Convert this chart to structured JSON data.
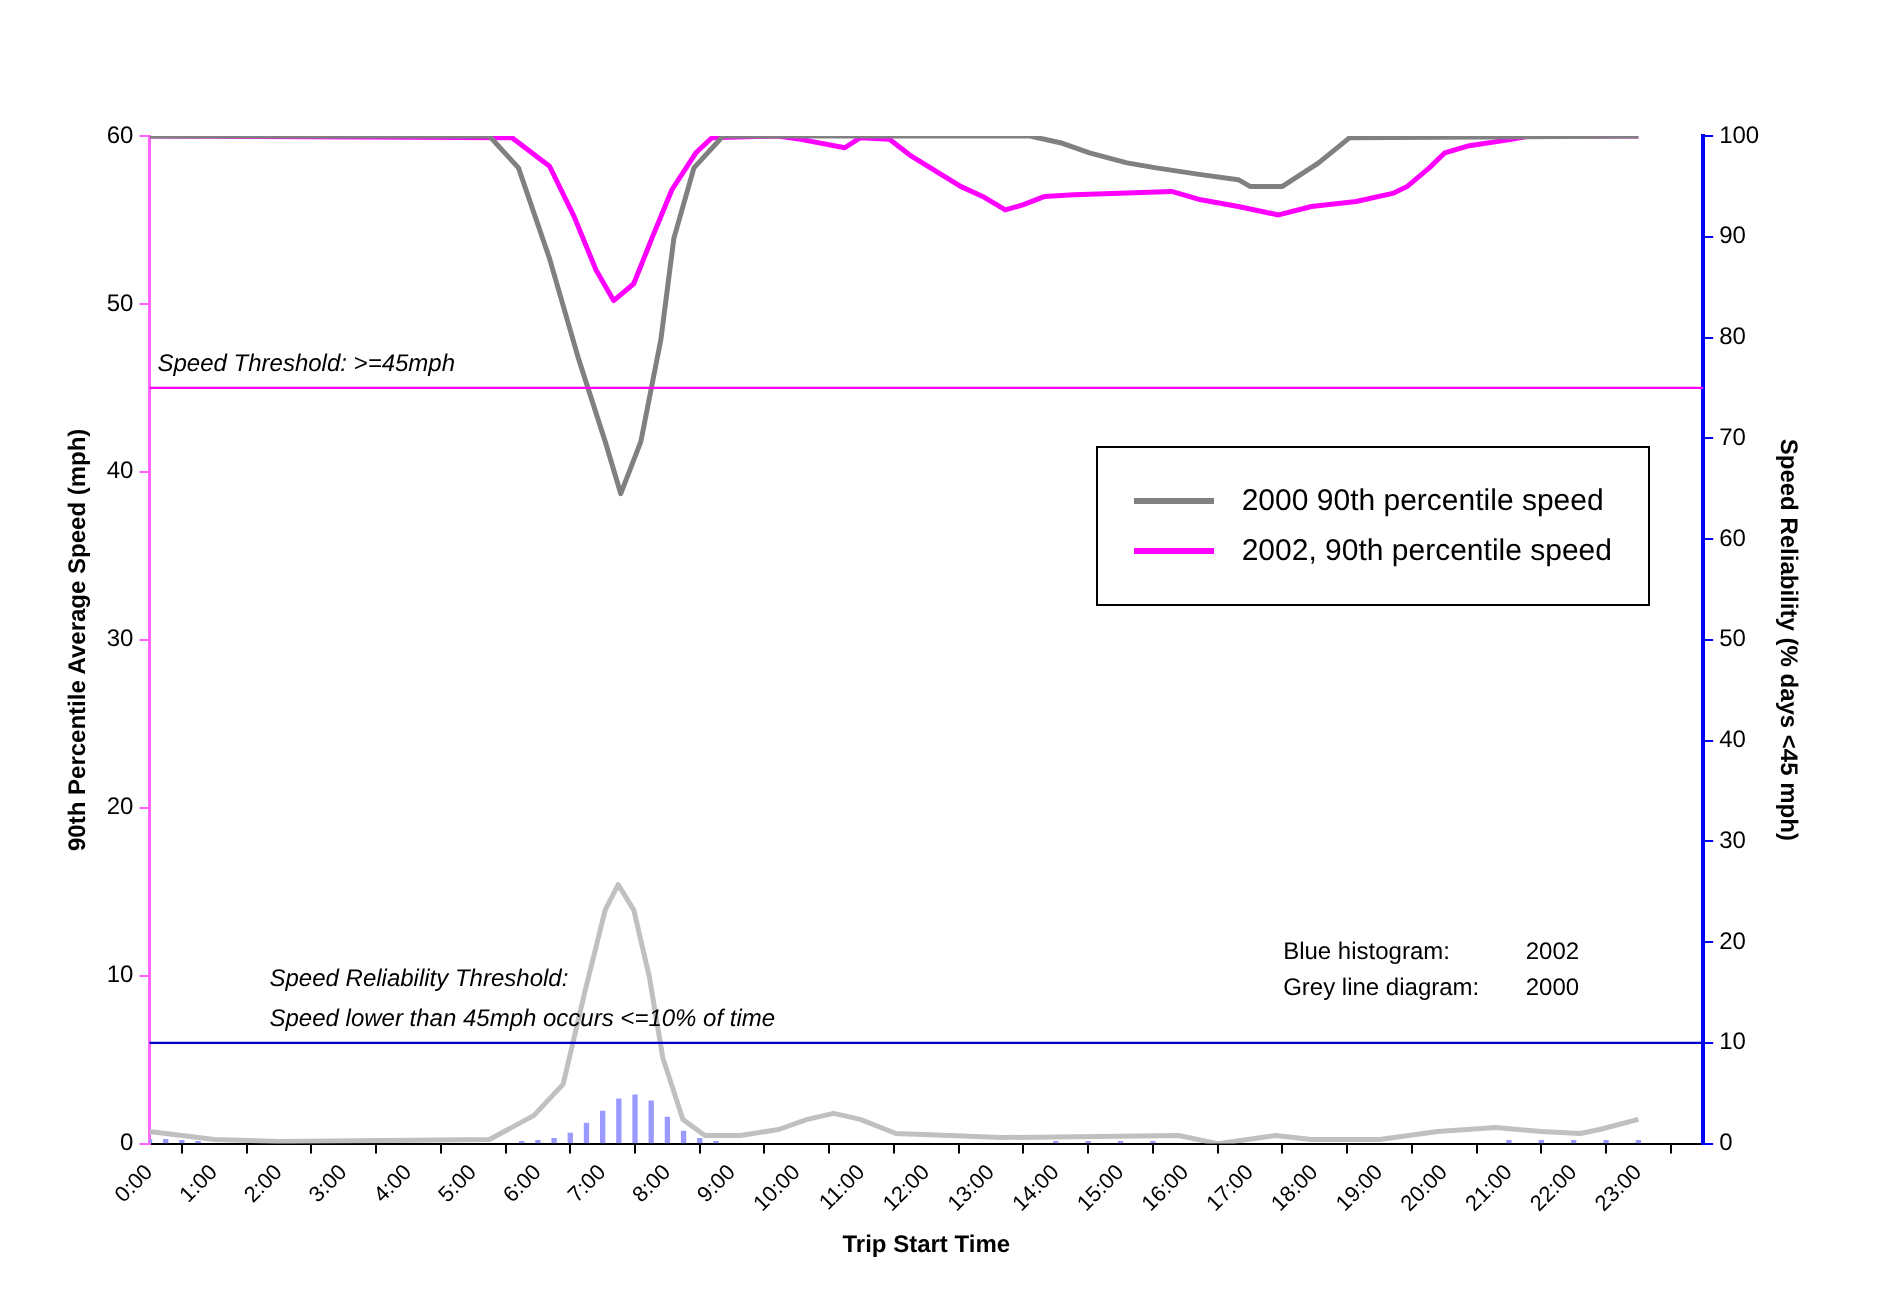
{
  "chart_data": {
    "type": "line",
    "xlabel": "Trip Start Time",
    "ylabel": "90th Percentile Average Speed (mph)",
    "y2label": "Speed Reliability (% days <45 mph)",
    "xlim": [
      0,
      24
    ],
    "xticks": [
      {
        "value": 0,
        "label": "0:00"
      },
      {
        "value": 1,
        "label": "1:00"
      },
      {
        "value": 2,
        "label": "2:00"
      },
      {
        "value": 3,
        "label": "3:00"
      },
      {
        "value": 4,
        "label": "4:00"
      },
      {
        "value": 5,
        "label": "5:00"
      },
      {
        "value": 6,
        "label": "6:00"
      },
      {
        "value": 7,
        "label": "7:00"
      },
      {
        "value": 8,
        "label": "8:00"
      },
      {
        "value": 9,
        "label": "9:00"
      },
      {
        "value": 10,
        "label": "10:00"
      },
      {
        "value": 11,
        "label": "11:00"
      },
      {
        "value": 12,
        "label": "12:00"
      },
      {
        "value": 13,
        "label": "13:00"
      },
      {
        "value": 14,
        "label": "14:00"
      },
      {
        "value": 15,
        "label": "15:00"
      },
      {
        "value": 16,
        "label": "16:00"
      },
      {
        "value": 17,
        "label": "17:00"
      },
      {
        "value": 18,
        "label": "18:00"
      },
      {
        "value": 19,
        "label": "19:00"
      },
      {
        "value": 20,
        "label": "20:00"
      },
      {
        "value": 21,
        "label": "21:00"
      },
      {
        "value": 22,
        "label": "22:00"
      },
      {
        "value": 23,
        "label": "23:00"
      },
      {
        "value": 24,
        "label": null
      }
    ],
    "ylim": [
      0,
      60
    ],
    "yticks": [
      0,
      10,
      20,
      30,
      40,
      50,
      60
    ],
    "y2lim": [
      0,
      100
    ],
    "y2ticks": [
      0,
      10,
      20,
      30,
      40,
      50,
      60,
      70,
      80,
      90,
      100
    ],
    "series": [
      {
        "name": "2000 90th percentile speed",
        "color": "#808080",
        "x": [
          0,
          5.25,
          5.7,
          6.18,
          6.63,
          7.04,
          7.28,
          7.59,
          7.9,
          8.1,
          8.41,
          8.86,
          13.6,
          14.07,
          14.52,
          15.1,
          15.55,
          16.24,
          16.82,
          17.0,
          17.5,
          18.06,
          18.54,
          23
        ],
        "values": [
          60,
          60,
          58.1,
          52.7,
          46.7,
          41.8,
          38.7,
          41.8,
          47.9,
          53.9,
          58.1,
          60,
          60,
          59.6,
          59.0,
          58.4,
          58.1,
          57.7,
          57.4,
          57.0,
          57.0,
          58.4,
          59.9,
          60
        ]
      },
      {
        "name": "2002, 90th percentile speed",
        "color": "#ff00ff",
        "x": [
          0,
          5.6,
          6.18,
          6.56,
          6.9,
          7.17,
          7.48,
          7.76,
          8.07,
          8.44,
          8.69,
          9.7,
          10.06,
          10.74,
          10.98,
          11.43,
          11.77,
          12.19,
          12.53,
          12.87,
          13.22,
          13.49,
          13.83,
          14.28,
          15.1,
          15.79,
          16.24,
          16.82,
          17.44,
          17.95,
          18.64,
          19.22,
          19.43,
          19.77,
          20.01,
          20.36,
          21.04,
          21.32,
          23
        ],
        "values": [
          60,
          59.9,
          58.2,
          55.2,
          52,
          50.2,
          51.2,
          53.9,
          56.8,
          59,
          59.9,
          60,
          59.8,
          59.3,
          59.9,
          59.8,
          58.8,
          57.8,
          57,
          56.4,
          55.6,
          55.9,
          56.4,
          56.5,
          56.6,
          56.7,
          56.2,
          55.8,
          55.3,
          55.8,
          56.1,
          56.6,
          57,
          58.1,
          59,
          59.4,
          59.8,
          60,
          60
        ]
      },
      {
        "axis": "y2",
        "color": "#c0c0c0",
        "x": [
          0,
          1,
          2,
          5.25,
          5.94,
          6.39,
          6.73,
          7.04,
          7.24,
          7.48,
          7.72,
          7.93,
          8.24,
          8.58,
          9.13,
          9.72,
          10.16,
          10.57,
          10.98,
          11.53,
          12.36,
          13.15,
          15.9,
          16.5,
          17.4,
          17.95,
          19,
          19.9,
          20.8,
          21.5,
          22.1,
          22.4,
          23
        ],
        "values": [
          1.2,
          0.4,
          0.2,
          0.4,
          2.8,
          5.9,
          15.2,
          23.2,
          25.7,
          23.2,
          16.6,
          8.5,
          2.4,
          0.8,
          0.8,
          1.4,
          2.4,
          3.0,
          2.4,
          1.0,
          0.8,
          0.6,
          0.8,
          0,
          0.8,
          0.4,
          0.4,
          1.2,
          1.6,
          1.2,
          1.0,
          1.4,
          2.4
        ]
      },
      {
        "type": "bar",
        "axis": "y2",
        "color": "#9999ff",
        "x": [
          0,
          0.25,
          0.5,
          0.75,
          5.75,
          6,
          6.25,
          6.5,
          6.75,
          7,
          7.25,
          7.5,
          7.75,
          8,
          8.25,
          8.5,
          8.75,
          14,
          14.5,
          15,
          15.5,
          21,
          21.5,
          22,
          22.5,
          23
        ],
        "values": [
          0.4,
          0.4,
          0.3,
          0.2,
          0.2,
          0.3,
          0.5,
          1.0,
          2.0,
          3.2,
          4.4,
          4.8,
          4.2,
          2.6,
          1.2,
          0.5,
          0.2,
          0.2,
          0.2,
          0.2,
          0.2,
          0.3,
          0.3,
          0.3,
          0.3,
          0.3
        ]
      }
    ],
    "ref_lines": [
      {
        "axis": "y",
        "value": 45,
        "label": "Speed Threshold: >=45mph",
        "color": "#ff00ff"
      },
      {
        "axis": "y2",
        "value": 10,
        "label": "Speed Reliability Threshold:\nSpeed lower than 45mph occurs <=10% of time",
        "color": "#0000cc"
      }
    ],
    "annotations": [
      "Blue histogram:       2002",
      "Grey line diagram:   2000"
    ],
    "legend": "right",
    "grid": false,
    "marker": "none",
    "line_style": "solid"
  }
}
